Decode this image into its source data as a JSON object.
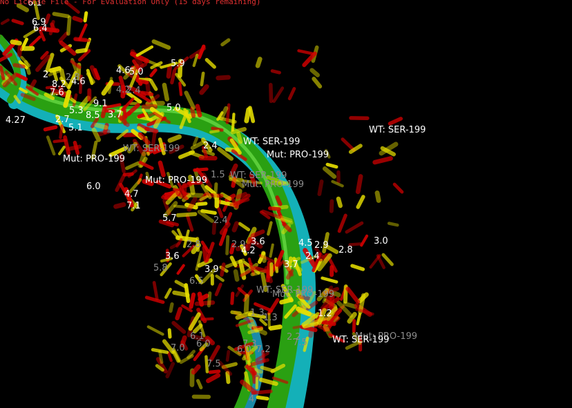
{
  "banner_text": "No License File - For Evaluation Only (15 days remaining)",
  "colors": {
    "background": "#000000",
    "stick_yellow": "#e8e000",
    "stick_red": "#d00000",
    "ribbon_green": "#2aa012",
    "ribbon_cyan": "#14b0b8",
    "label_bright": "#ffffff",
    "label_dim": "#8c8c8c"
  },
  "residue_labels": [
    "WT: SER-199",
    "WT: SER-199",
    "Mut: PRO-199",
    "Mut: PRO-199",
    "WT: SER-199",
    "Mut: PRO-199",
    "WT: SER-199",
    "Mut: PRO-199",
    "WT: SER-199",
    "Mut: PRO-199",
    "Mut: PRO-199",
    "WT: SER-199"
  ],
  "distance_labels": [
    "6.1",
    "6.9",
    "6.4",
    "5.9",
    "4.6",
    "5.0",
    "8.2",
    "4.6",
    "7.6",
    "2.8",
    "4.2",
    "2.4",
    "2",
    "9.1",
    "5.3",
    "8.5",
    "3.7",
    "5.0",
    "4.27",
    "2.7",
    "5.1",
    "2.4",
    "6.0",
    "4.7",
    "7.1",
    "5.7",
    "2.4",
    "1.5",
    "2.9",
    "3.0",
    "2.8",
    "4.5",
    "2.9",
    "4.2",
    "3.6",
    "3.7",
    "3.9",
    "2.4",
    "2.8",
    "3.6",
    "5.8",
    "6.5",
    "1.3",
    "1.3",
    "1.2",
    "6.1",
    "6.0",
    "7.0",
    "7.5",
    "7.3",
    "6.0",
    "7.2",
    "2.2",
    "7.5",
    "4"
  ]
}
